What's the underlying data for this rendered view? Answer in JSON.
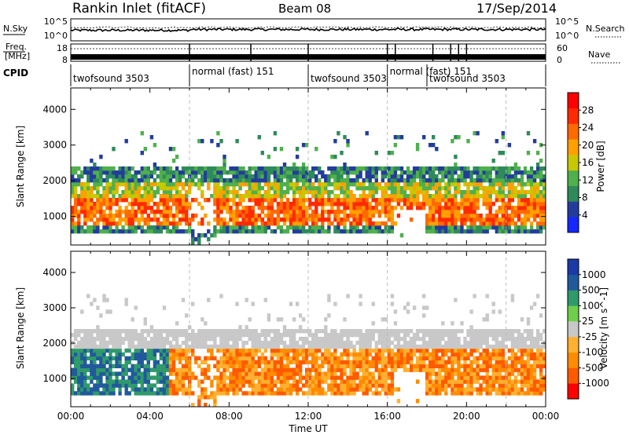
{
  "header": {
    "station": "Rankin Inlet (fitACF)",
    "beam": "Beam 08",
    "date": "17/Sep/2014"
  },
  "strip_labels": {
    "nsky": "N.Sky",
    "freq_line1": "Freq.",
    "freq_line2": "[MHz]",
    "cpid": "CPID",
    "nsearch": "N.Search",
    "nave": "Nave"
  },
  "strip_ticks": {
    "nsky_top": "10^5",
    "nsky_bottom": "10^0",
    "freq_top": "18",
    "freq_bottom": "8",
    "nave_top": "60",
    "nave_bottom": "0",
    "nsearch_top": "10^5",
    "nsearch_bottom": "10^0"
  },
  "cpid_segments": [
    {
      "label": "twofsound 3503",
      "start": 0,
      "end": 6
    },
    {
      "label": "normal (fast) 151",
      "start": 6,
      "end": 12
    },
    {
      "label": "twofsound 3503",
      "start": 12,
      "end": 16
    },
    {
      "label": "normal (fast) 151",
      "start": 16,
      "end": 18
    },
    {
      "label": "twofsound 3503",
      "start": 18,
      "end": 24
    }
  ],
  "colors": {
    "power": [
      "#1428ff",
      "#233c9c",
      "#2f8a5a",
      "#4fb04c",
      "#c8c800",
      "#ffa000",
      "#ff6a00",
      "#ff2a00",
      "#ff0000"
    ],
    "velocity": [
      "#ff0000",
      "#ff5a00",
      "#ff8c00",
      "#ffb030",
      "#c8c8c8",
      "#6fcf4a",
      "#2f9a6a",
      "#205a9c",
      "#1a3aa8"
    ]
  },
  "chart_data": [
    {
      "type": "heatmap",
      "name": "power",
      "xlabel": "",
      "ylabel": "Slant Range [km]",
      "xlim": [
        0,
        24
      ],
      "ylim": [
        200,
        4600
      ],
      "yticks": [
        1000,
        2000,
        3000,
        4000
      ],
      "colorbar_label": "Power [dB]",
      "colorbar_ticks": [
        "4",
        "8",
        "12",
        "16",
        "20",
        "24",
        "28"
      ],
      "colorbar_range": [
        0,
        32
      ]
    },
    {
      "type": "heatmap",
      "name": "velocity",
      "xlabel": "Time UT",
      "ylabel": "Slant Range [km]",
      "xlim": [
        0,
        24
      ],
      "ylim": [
        200,
        4600
      ],
      "xticks": [
        "00:00",
        "04:00",
        "08:00",
        "12:00",
        "16:00",
        "20:00",
        "00:00"
      ],
      "yticks": [
        1000,
        2000,
        3000,
        4000
      ],
      "colorbar_label": "Velocity [m s^-1]",
      "colorbar_ticks": [
        "1000",
        "500",
        "100",
        "25",
        "-25",
        "-100",
        "-500",
        "-1000"
      ]
    }
  ]
}
